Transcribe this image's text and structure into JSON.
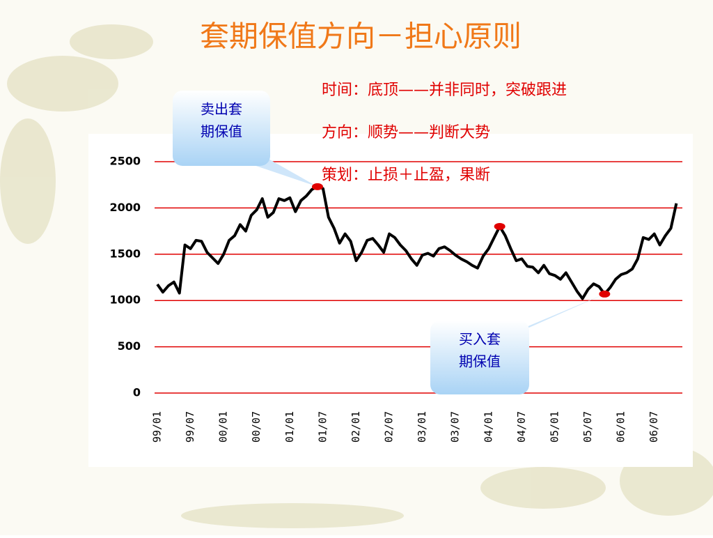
{
  "chart_data": {
    "type": "line",
    "title": "套期保值方向－担心原则",
    "notes": [
      "时间：底顶——并非同时，突破跟进",
      "方向：顺势——判断大势",
      "策划：止损＋止盈，果断"
    ],
    "categories": [
      "99/01",
      null,
      null,
      null,
      null,
      null,
      "99/07",
      null,
      null,
      null,
      null,
      null,
      "00/01",
      null,
      null,
      null,
      null,
      null,
      "00/07",
      null,
      null,
      null,
      null,
      null,
      "01/01",
      null,
      null,
      null,
      null,
      null,
      "01/07",
      null,
      null,
      null,
      null,
      null,
      "02/01",
      null,
      null,
      null,
      null,
      null,
      "02/07",
      null,
      null,
      null,
      null,
      null,
      "03/01",
      null,
      null,
      null,
      null,
      null,
      "03/07",
      null,
      null,
      null,
      null,
      null,
      "04/01",
      null,
      null,
      null,
      null,
      null,
      "04/07",
      null,
      null,
      null,
      null,
      null,
      "05/01",
      null,
      null,
      null,
      null,
      null,
      "05/07",
      null,
      null,
      null,
      null,
      null,
      "06/01",
      null,
      null,
      null,
      null,
      null,
      "06/07",
      null,
      null,
      null,
      null
    ],
    "series": [
      {
        "color": "#000000",
        "values": [
          1175,
          1090,
          1160,
          1200,
          1080,
          1600,
          1560,
          1650,
          1640,
          1520,
          1460,
          1400,
          1500,
          1650,
          1700,
          1820,
          1750,
          1920,
          1980,
          2100,
          1900,
          1950,
          2100,
          2080,
          2110,
          1960,
          2080,
          2130,
          2200,
          2230,
          2210,
          1900,
          1780,
          1620,
          1720,
          1640,
          1430,
          1520,
          1650,
          1670,
          1600,
          1520,
          1720,
          1680,
          1600,
          1540,
          1450,
          1380,
          1490,
          1510,
          1480,
          1560,
          1580,
          1540,
          1490,
          1450,
          1420,
          1380,
          1350,
          1480,
          1560,
          1680,
          1800,
          1700,
          1560,
          1430,
          1450,
          1370,
          1360,
          1300,
          1380,
          1290,
          1270,
          1230,
          1300,
          1200,
          1100,
          1020,
          1120,
          1180,
          1150,
          1070,
          1140,
          1230,
          1280,
          1300,
          1340,
          1450,
          1680,
          1660,
          1720,
          1600,
          1700,
          1780,
          2050
        ]
      }
    ],
    "ylim": [
      0,
      2500
    ],
    "yticks": [
      0,
      500,
      1000,
      1500,
      2000,
      2500
    ],
    "grid": true,
    "grid_color": "#e00000",
    "markers": [
      29,
      62,
      81
    ],
    "marker_color": "#e00000",
    "callouts": [
      {
        "lines": [
          "卖出套",
          "期保值"
        ],
        "point": 29
      },
      {
        "lines": [
          "买入套",
          "期保值"
        ],
        "point": 81
      }
    ]
  }
}
